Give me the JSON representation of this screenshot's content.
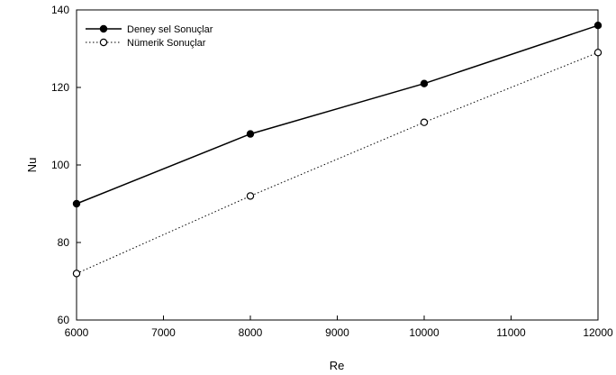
{
  "chart_data": {
    "type": "line",
    "title": "",
    "xlabel": "Re",
    "ylabel": "Nu",
    "xlim": [
      6000,
      12000
    ],
    "ylim": [
      60,
      140
    ],
    "xticks": [
      6000,
      7000,
      8000,
      9000,
      10000,
      11000,
      12000
    ],
    "yticks": [
      60,
      80,
      100,
      120,
      140
    ],
    "grid": false,
    "legend_position": "top-left",
    "series": [
      {
        "name": "Deney sel Sonuçlar",
        "marker": "filled-circle",
        "line_style": "solid",
        "color": "#000000",
        "x": [
          6000,
          8000,
          10000,
          12000
        ],
        "y": [
          90,
          108,
          121,
          136
        ]
      },
      {
        "name": "Nümerik Sonuçlar",
        "marker": "open-circle",
        "line_style": "dotted",
        "color": "#000000",
        "x": [
          6000,
          8000,
          10000,
          12000
        ],
        "y": [
          72,
          92,
          111,
          129
        ]
      }
    ]
  }
}
